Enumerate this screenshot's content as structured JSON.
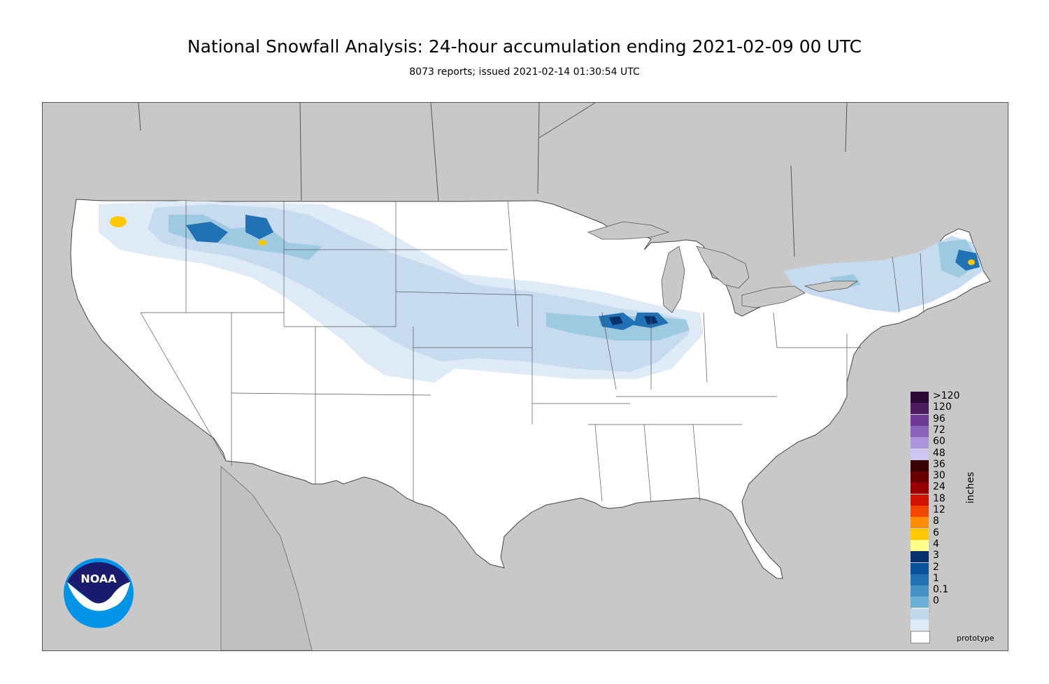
{
  "header": {
    "title": "National Snowfall Analysis: 24-hour accumulation ending 2021-02-09 00 UTC",
    "subtitle": "8073 reports; issued 2021-02-14 01:30:54 UTC"
  },
  "legend": {
    "units": "inches",
    "bins": [
      {
        "label": ">120",
        "color": "#2a0a32"
      },
      {
        "label": "120",
        "color": "#4d1a60"
      },
      {
        "label": "96",
        "color": "#6e3a96"
      },
      {
        "label": "72",
        "color": "#8a64bc"
      },
      {
        "label": "60",
        "color": "#ab94dc"
      },
      {
        "label": "48",
        "color": "#cfc6f4"
      },
      {
        "label": "36",
        "color": "#3a0000"
      },
      {
        "label": "30",
        "color": "#6a0000"
      },
      {
        "label": "24",
        "color": "#9a0000"
      },
      {
        "label": "18",
        "color": "#d01400"
      },
      {
        "label": "12",
        "color": "#f04600"
      },
      {
        "label": "8",
        "color": "#ff8c00"
      },
      {
        "label": "6",
        "color": "#ffc800"
      },
      {
        "label": "4",
        "color": "#ffff8c"
      },
      {
        "label": "3",
        "color": "#08306b"
      },
      {
        "label": "2",
        "color": "#08519c"
      },
      {
        "label": "1",
        "color": "#2171b5"
      },
      {
        "label": "0.1",
        "color": "#4292c6"
      },
      {
        "label": "0",
        "color": "#6baed6"
      }
    ],
    "extra_bins": [
      "#c0d8ec",
      "#deebf7",
      "#ffffff"
    ]
  },
  "map": {
    "land_color": "#ffffff",
    "background_color": "#c8c8c8",
    "snow_light": "#c6dbef",
    "snow_mid": "#9ecae1",
    "snow_heavy": "#2171b5",
    "snow_deep": "#08306b",
    "snow_peak": "#ffc800"
  },
  "logo": {
    "text": "NOAA",
    "icon": "noaa-logo-icon"
  },
  "footer": {
    "note": "prototype"
  }
}
